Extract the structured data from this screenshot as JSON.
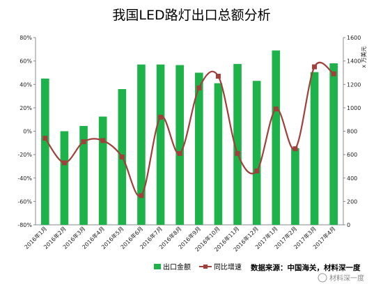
{
  "chart_data": {
    "type": "bar",
    "title": "我国LED路灯出口总额分析",
    "categories": [
      "2016年1月",
      "2016年2月",
      "2016年3月",
      "2016年4月",
      "2016年5月",
      "2016年6月",
      "2016年7月",
      "2016年8月",
      "2016年9月",
      "2016年10月",
      "2016年11月",
      "2016年12月",
      "2017年1月",
      "2017年2月",
      "2017年3月",
      "2017年4月"
    ],
    "series": [
      {
        "name": "出口金额",
        "type": "bar",
        "axis": "right",
        "color": "#1db34a",
        "values": [
          1250,
          800,
          845,
          925,
          1160,
          1370,
          1370,
          1365,
          1300,
          1210,
          1375,
          1230,
          1490,
          655,
          1305,
          1380
        ]
      },
      {
        "name": "同比增速",
        "type": "line",
        "axis": "left",
        "color": "#a0403c",
        "values": [
          -6,
          -27,
          -9,
          -8,
          -22,
          -55,
          12,
          -19,
          37,
          47,
          -19,
          -34,
          19,
          -15,
          55,
          49
        ]
      }
    ],
    "y_left": {
      "min": -80,
      "max": 80,
      "step": 20,
      "suffix": "%"
    },
    "y_right": {
      "min": 0,
      "max": 1600,
      "step": 200,
      "label": "x 万美元"
    },
    "grid": false,
    "legend_position": "bottom-left"
  },
  "source_text": "数据来源：中国海关，材料深一度",
  "watermark_text": "材料深一度"
}
